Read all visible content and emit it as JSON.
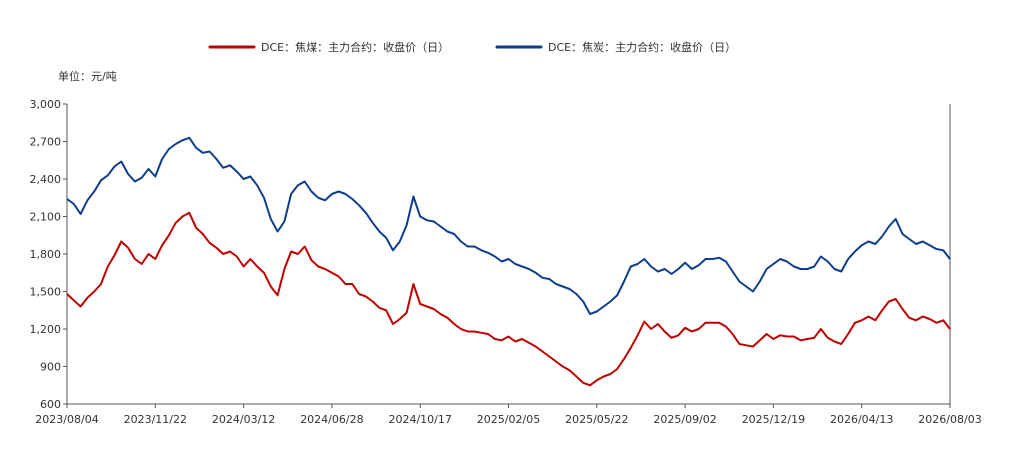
{
  "chart_data": {
    "type": "line",
    "unit_label": "单位：元/吨",
    "ylim": [
      600,
      3000
    ],
    "y_ticks": [
      600,
      900,
      1200,
      1500,
      1800,
      2100,
      2400,
      2700,
      3000
    ],
    "y_tick_labels": [
      "600",
      "900",
      "1,200",
      "1,500",
      "1,800",
      "2,100",
      "2,400",
      "2,700",
      "3,000"
    ],
    "x_tick_labels": [
      "2023/08/04",
      "2023/11/22",
      "2024/03/12",
      "2024/06/28",
      "2024/10/17",
      "2025/02/05",
      "2025/05/22",
      "2025/09/02",
      "2025/12/19",
      "2026/04/13",
      "2026/08/03"
    ],
    "legend_position": "top-center",
    "grid": false,
    "series": [
      {
        "name": "DCE：焦煤：主力合约：收盘价（日）",
        "color": "#c00000",
        "values": [
          1480,
          1430,
          1380,
          1450,
          1500,
          1560,
          1700,
          1790,
          1900,
          1850,
          1760,
          1720,
          1800,
          1760,
          1870,
          1950,
          2050,
          2100,
          2130,
          2010,
          1960,
          1890,
          1850,
          1800,
          1820,
          1780,
          1700,
          1760,
          1700,
          1650,
          1540,
          1470,
          1680,
          1820,
          1800,
          1860,
          1750,
          1700,
          1680,
          1650,
          1620,
          1560,
          1560,
          1480,
          1460,
          1420,
          1370,
          1350,
          1240,
          1280,
          1330,
          1560,
          1400,
          1380,
          1360,
          1320,
          1290,
          1240,
          1200,
          1180,
          1180,
          1170,
          1160,
          1120,
          1110,
          1140,
          1100,
          1120,
          1090,
          1060,
          1020,
          980,
          940,
          900,
          870,
          820,
          770,
          750,
          790,
          820,
          840,
          880,
          960,
          1050,
          1150,
          1260,
          1200,
          1240,
          1180,
          1130,
          1150,
          1210,
          1180,
          1200,
          1250,
          1250,
          1250,
          1220,
          1160,
          1080,
          1070,
          1060,
          1110,
          1160,
          1120,
          1150,
          1140,
          1140,
          1110,
          1120,
          1130,
          1200,
          1130,
          1100,
          1080,
          1160,
          1250,
          1270,
          1300,
          1270,
          1350,
          1420,
          1440,
          1360,
          1290,
          1270,
          1300,
          1280,
          1250,
          1270,
          1200
        ]
      },
      {
        "name": "DCE：焦炭：主力合约：收盘价（日）",
        "color": "#0e3d8b",
        "values": [
          2240,
          2200,
          2120,
          2230,
          2300,
          2390,
          2430,
          2500,
          2540,
          2440,
          2380,
          2410,
          2480,
          2420,
          2560,
          2640,
          2680,
          2710,
          2730,
          2650,
          2610,
          2620,
          2560,
          2490,
          2510,
          2460,
          2400,
          2420,
          2350,
          2250,
          2080,
          1980,
          2060,
          2280,
          2350,
          2380,
          2300,
          2250,
          2230,
          2280,
          2300,
          2280,
          2240,
          2190,
          2130,
          2050,
          1980,
          1930,
          1830,
          1900,
          2030,
          2260,
          2100,
          2070,
          2060,
          2020,
          1980,
          1960,
          1900,
          1860,
          1860,
          1830,
          1810,
          1780,
          1740,
          1760,
          1720,
          1700,
          1680,
          1650,
          1610,
          1600,
          1560,
          1540,
          1520,
          1480,
          1420,
          1320,
          1340,
          1380,
          1420,
          1470,
          1580,
          1700,
          1720,
          1760,
          1700,
          1660,
          1680,
          1640,
          1680,
          1730,
          1680,
          1710,
          1760,
          1760,
          1770,
          1740,
          1660,
          1580,
          1540,
          1500,
          1580,
          1680,
          1720,
          1760,
          1740,
          1700,
          1680,
          1680,
          1700,
          1780,
          1740,
          1680,
          1660,
          1760,
          1820,
          1870,
          1900,
          1880,
          1940,
          2020,
          2080,
          1960,
          1920,
          1880,
          1900,
          1870,
          1840,
          1830,
          1760
        ]
      }
    ]
  }
}
